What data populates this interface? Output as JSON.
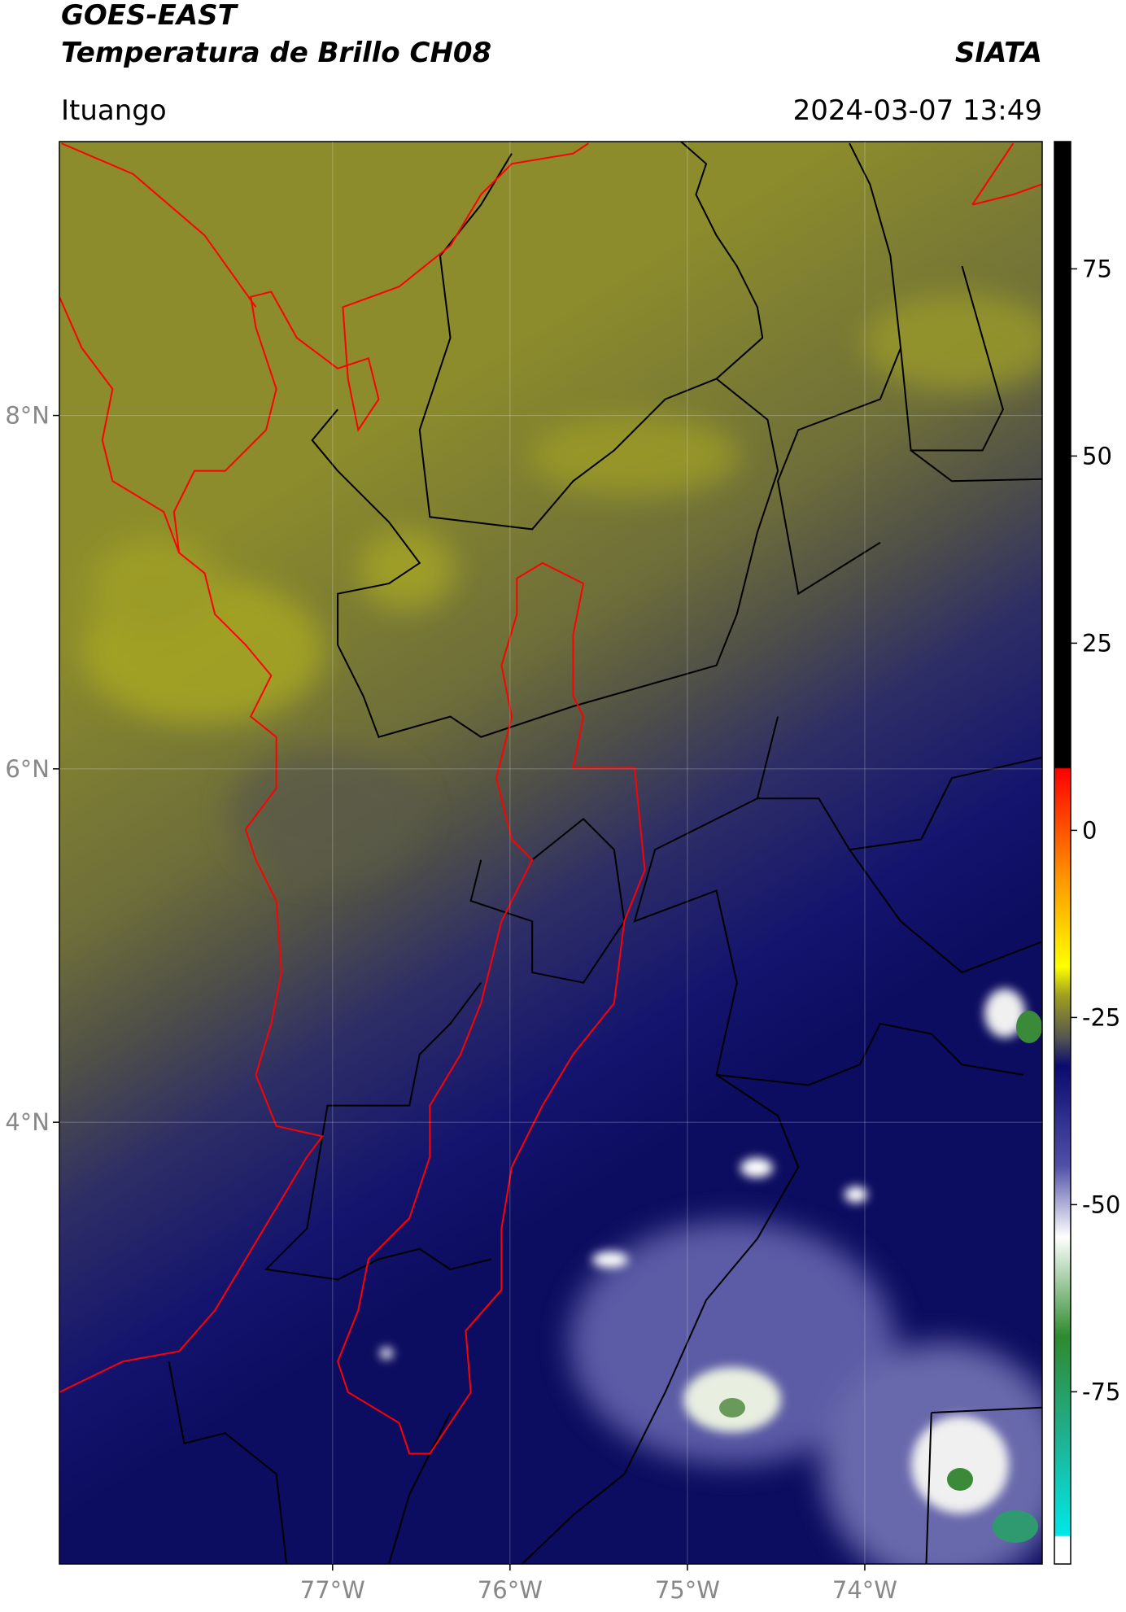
{
  "header": {
    "title": "GOES-EAST",
    "subtitle": "Temperatura de Brillo CH08",
    "source": "SIATA",
    "location": "Ituango",
    "datetime": "2024-03-07 13:49"
  },
  "map": {
    "xlim": [
      -78.54,
      -73.0
    ],
    "ylim": [
      1.5,
      9.55
    ],
    "xticks": [
      {
        "value": -77,
        "label": "77°W"
      },
      {
        "value": -76,
        "label": "76°W"
      },
      {
        "value": -75,
        "label": "75°W"
      },
      {
        "value": -74,
        "label": "74°W"
      }
    ],
    "yticks": [
      {
        "value": 4,
        "label": "4°N"
      },
      {
        "value": 6,
        "label": "6°N"
      },
      {
        "value": 8,
        "label": "8°N"
      }
    ],
    "grid": true
  },
  "colorbar": {
    "lim": [
      -98,
      92
    ],
    "ticks": [
      -75,
      -50,
      -25,
      0,
      25,
      50,
      75
    ]
  }
}
